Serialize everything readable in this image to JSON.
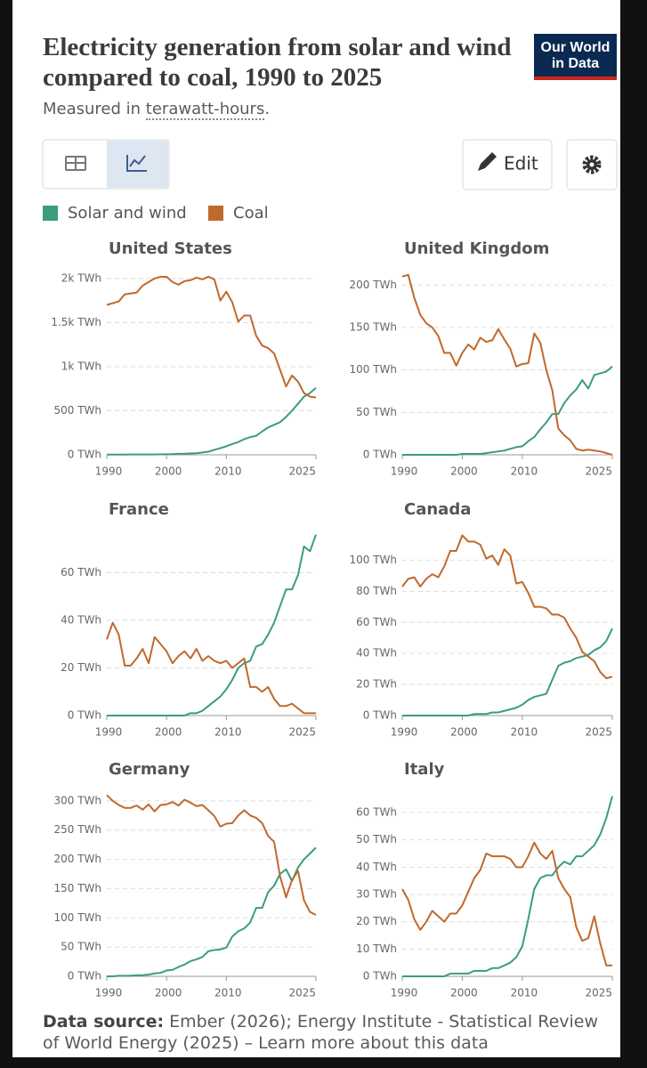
{
  "header": {
    "title": "Electricity generation from solar and wind compared to coal, 1990 to 2025",
    "subtitle": "Measured in",
    "subtitle_unit": "terawatt-hours",
    "subtitle_end": ".",
    "logo_line1": "Our World",
    "logo_line2": "in Data"
  },
  "toolbar": {
    "edit": "Edit"
  },
  "footer": {
    "source_label": "Data source:",
    "source_text": "Ember (2026); Energy Institute - Statistical Review of World Energy (2025) – Learn more about this data"
  },
  "chart_data": [
    {
      "type": "line",
      "title": "United States",
      "x": [
        1990,
        1991,
        1992,
        1993,
        1994,
        1995,
        1996,
        1997,
        1998,
        1999,
        2000,
        2001,
        2002,
        2003,
        2004,
        2005,
        2006,
        2007,
        2008,
        2009,
        2010,
        2011,
        2012,
        2013,
        2014,
        2015,
        2016,
        2017,
        2018,
        2019,
        2020,
        2021,
        2022,
        2023,
        2024,
        2025
      ],
      "xlim": [
        1990,
        2025
      ],
      "xticks": [
        1990,
        2000,
        2010,
        2025
      ],
      "ylim": [
        0,
        2080
      ],
      "yticks": [
        {
          "value": 0,
          "label": "0 TWh"
        },
        {
          "value": 500,
          "label": "500 TWh"
        },
        {
          "value": 1000,
          "label": "1k TWh"
        },
        {
          "value": 1500,
          "label": "1.5k TWh"
        },
        {
          "value": 2000,
          "label": "2k TWh"
        }
      ],
      "grid": true,
      "series": [
        {
          "name": "Solar and wind",
          "color": "#3b9c80",
          "values": [
            3,
            3,
            3,
            3,
            4,
            4,
            4,
            4,
            4,
            5,
            6,
            7,
            11,
            12,
            15,
            18,
            27,
            35,
            56,
            75,
            96,
            122,
            145,
            177,
            200,
            215,
            265,
            310,
            340,
            370,
            430,
            500,
            580,
            660,
            700,
            760
          ]
        },
        {
          "name": "Coal",
          "color": "#c0692c",
          "values": [
            1700,
            1720,
            1740,
            1820,
            1830,
            1840,
            1920,
            1960,
            2000,
            2020,
            2020,
            1960,
            1930,
            1970,
            1980,
            2010,
            1990,
            2020,
            1990,
            1750,
            1850,
            1730,
            1510,
            1580,
            1580,
            1350,
            1240,
            1210,
            1150,
            965,
            775,
            900,
            830,
            700,
            660,
            650
          ]
        }
      ]
    },
    {
      "type": "line",
      "title": "United Kingdom",
      "x": [
        1990,
        1991,
        1992,
        1993,
        1994,
        1995,
        1996,
        1997,
        1998,
        1999,
        2000,
        2001,
        2002,
        2003,
        2004,
        2005,
        2006,
        2007,
        2008,
        2009,
        2010,
        2011,
        2012,
        2013,
        2014,
        2015,
        2016,
        2017,
        2018,
        2019,
        2020,
        2021,
        2022,
        2023,
        2024,
        2025
      ],
      "xlim": [
        1990,
        2025
      ],
      "xticks": [
        1990,
        2000,
        2010,
        2025
      ],
      "ylim": [
        0,
        216
      ],
      "yticks": [
        {
          "value": 0,
          "label": "0 TWh"
        },
        {
          "value": 50,
          "label": "50 TWh"
        },
        {
          "value": 100,
          "label": "100 TWh"
        },
        {
          "value": 150,
          "label": "150 TWh"
        },
        {
          "value": 200,
          "label": "200 TWh"
        }
      ],
      "grid": true,
      "series": [
        {
          "name": "Solar and wind",
          "color": "#3b9c80",
          "values": [
            0,
            0,
            0,
            0,
            0,
            0,
            0,
            0,
            0,
            0,
            1,
            1,
            1,
            1,
            2,
            3,
            4,
            5,
            7,
            9,
            10,
            16,
            21,
            30,
            38,
            48,
            48,
            61,
            70,
            77,
            88,
            78,
            94,
            96,
            98,
            104
          ]
        },
        {
          "name": "Coal",
          "color": "#c0692c",
          "values": [
            210,
            212,
            185,
            165,
            155,
            150,
            140,
            120,
            120,
            105,
            120,
            130,
            124,
            138,
            133,
            135,
            148,
            136,
            125,
            104,
            107,
            108,
            143,
            132,
            100,
            76,
            31,
            23,
            17,
            7,
            5,
            6,
            5,
            4,
            2,
            0
          ]
        }
      ]
    },
    {
      "type": "line",
      "title": "France",
      "x": [
        1990,
        1991,
        1992,
        1993,
        1994,
        1995,
        1996,
        1997,
        1998,
        1999,
        2000,
        2001,
        2002,
        2003,
        2004,
        2005,
        2006,
        2007,
        2008,
        2009,
        2010,
        2011,
        2012,
        2013,
        2014,
        2015,
        2016,
        2017,
        2018,
        2019,
        2020,
        2021,
        2022,
        2023,
        2024,
        2025
      ],
      "xlim": [
        1990,
        2025
      ],
      "xticks": [
        1990,
        2000,
        2010,
        2025
      ],
      "ylim": [
        0,
        77
      ],
      "yticks": [
        {
          "value": 0,
          "label": "0 TWh"
        },
        {
          "value": 20,
          "label": "20 TWh"
        },
        {
          "value": 40,
          "label": "40 TWh"
        },
        {
          "value": 60,
          "label": "60 TWh"
        }
      ],
      "grid": true,
      "series": [
        {
          "name": "Solar and wind",
          "color": "#3b9c80",
          "values": [
            0,
            0,
            0,
            0,
            0,
            0,
            0,
            0,
            0,
            0,
            0,
            0,
            0,
            0,
            1,
            1,
            2,
            4,
            6,
            8,
            11,
            15,
            20,
            22,
            23,
            29,
            30,
            34,
            39,
            46,
            53,
            53,
            59,
            71,
            69,
            76
          ]
        },
        {
          "name": "Coal",
          "color": "#c0692c",
          "values": [
            32,
            39,
            34,
            21,
            21,
            24,
            28,
            22,
            33,
            30,
            27,
            22,
            25,
            27,
            24,
            28,
            23,
            25,
            23,
            22,
            23,
            20,
            22,
            24,
            12,
            12,
            10,
            12,
            7,
            4,
            4,
            5,
            3,
            1,
            1,
            1
          ]
        }
      ]
    },
    {
      "type": "line",
      "title": "Canada",
      "x": [
        1990,
        1991,
        1992,
        1993,
        1994,
        1995,
        1996,
        1997,
        1998,
        1999,
        2000,
        2001,
        2002,
        2003,
        2004,
        2005,
        2006,
        2007,
        2008,
        2009,
        2010,
        2011,
        2012,
        2013,
        2014,
        2015,
        2016,
        2017,
        2018,
        2019,
        2020,
        2021,
        2022,
        2023,
        2024,
        2025
      ],
      "xlim": [
        1990,
        2025
      ],
      "xticks": [
        1990,
        2000,
        2010,
        2025
      ],
      "ylim": [
        0,
        118
      ],
      "yticks": [
        {
          "value": 0,
          "label": "0 TWh"
        },
        {
          "value": 20,
          "label": "20 TWh"
        },
        {
          "value": 40,
          "label": "40 TWh"
        },
        {
          "value": 60,
          "label": "60 TWh"
        },
        {
          "value": 80,
          "label": "80 TWh"
        },
        {
          "value": 100,
          "label": "100 TWh"
        }
      ],
      "grid": true,
      "series": [
        {
          "name": "Solar and wind",
          "color": "#3b9c80",
          "values": [
            0,
            0,
            0,
            0,
            0,
            0,
            0,
            0,
            0,
            0,
            0,
            0,
            1,
            1,
            1,
            2,
            2,
            3,
            4,
            5,
            7,
            10,
            12,
            13,
            14,
            23,
            32,
            34,
            35,
            37,
            38,
            39,
            42,
            44,
            48,
            56
          ]
        },
        {
          "name": "Coal",
          "color": "#c0692c",
          "values": [
            83,
            88,
            89,
            83,
            88,
            91,
            89,
            96,
            106,
            106,
            116,
            112,
            112,
            110,
            101,
            103,
            97,
            107,
            103,
            85,
            86,
            79,
            70,
            70,
            69,
            65,
            65,
            63,
            56,
            50,
            41,
            38,
            35,
            28,
            24,
            25
          ]
        }
      ]
    },
    {
      "type": "line",
      "title": "Germany",
      "x": [
        1990,
        1991,
        1992,
        1993,
        1994,
        1995,
        1996,
        1997,
        1998,
        1999,
        2000,
        2001,
        2002,
        2003,
        2004,
        2005,
        2006,
        2007,
        2008,
        2009,
        2010,
        2011,
        2012,
        2013,
        2014,
        2015,
        2016,
        2017,
        2018,
        2019,
        2020,
        2021,
        2022,
        2023,
        2024,
        2025
      ],
      "xlim": [
        1990,
        2025
      ],
      "xticks": [
        1990,
        2000,
        2010,
        2025
      ],
      "ylim": [
        0,
        315
      ],
      "yticks": [
        {
          "value": 0,
          "label": "0 TWh"
        },
        {
          "value": 50,
          "label": "50 TWh"
        },
        {
          "value": 100,
          "label": "100 TWh"
        },
        {
          "value": 150,
          "label": "150 TWh"
        },
        {
          "value": 200,
          "label": "200 TWh"
        },
        {
          "value": 250,
          "label": "250 TWh"
        },
        {
          "value": 300,
          "label": "300 TWh"
        }
      ],
      "grid": true,
      "series": [
        {
          "name": "Solar and wind",
          "color": "#3b9c80",
          "values": [
            0,
            0,
            1,
            1,
            1,
            2,
            2,
            3,
            5,
            6,
            10,
            11,
            16,
            20,
            26,
            29,
            33,
            43,
            45,
            46,
            49,
            68,
            77,
            82,
            92,
            117,
            117,
            144,
            155,
            175,
            183,
            163,
            186,
            200,
            210,
            220
          ]
        },
        {
          "name": "Coal",
          "color": "#c0692c",
          "values": [
            310,
            300,
            293,
            288,
            288,
            292,
            285,
            294,
            282,
            293,
            294,
            298,
            292,
            302,
            297,
            291,
            293,
            284,
            274,
            256,
            261,
            262,
            275,
            284,
            275,
            271,
            262,
            240,
            230,
            171,
            135,
            165,
            180,
            130,
            110,
            105
          ]
        }
      ]
    },
    {
      "type": "line",
      "title": "Italy",
      "x": [
        1990,
        1991,
        1992,
        1993,
        1994,
        1995,
        1996,
        1997,
        1998,
        1999,
        2000,
        2001,
        2002,
        2003,
        2004,
        2005,
        2006,
        2007,
        2008,
        2009,
        2010,
        2011,
        2012,
        2013,
        2014,
        2015,
        2016,
        2017,
        2018,
        2019,
        2020,
        2021,
        2022,
        2023,
        2024,
        2025
      ],
      "xlim": [
        1990,
        2025
      ],
      "xticks": [
        1990,
        2000,
        2010,
        2025
      ],
      "ylim": [
        0,
        67.5
      ],
      "yticks": [
        {
          "value": 0,
          "label": "0 TWh"
        },
        {
          "value": 10,
          "label": "10 TWh"
        },
        {
          "value": 20,
          "label": "20 TWh"
        },
        {
          "value": 30,
          "label": "30 TWh"
        },
        {
          "value": 40,
          "label": "40 TWh"
        },
        {
          "value": 50,
          "label": "50 TWh"
        },
        {
          "value": 60,
          "label": "60 TWh"
        }
      ],
      "grid": true,
      "series": [
        {
          "name": "Solar and wind",
          "color": "#3b9c80",
          "values": [
            0,
            0,
            0,
            0,
            0,
            0,
            0,
            0,
            1,
            1,
            1,
            1,
            2,
            2,
            2,
            3,
            3,
            4,
            5,
            7,
            11,
            21,
            32,
            36,
            37,
            37,
            40,
            42,
            41,
            44,
            44,
            46,
            48,
            52,
            58,
            66
          ]
        },
        {
          "name": "Coal",
          "color": "#c0692c",
          "values": [
            32,
            28,
            21,
            17,
            20,
            24,
            22,
            20,
            23,
            23,
            26,
            31,
            36,
            39,
            45,
            44,
            44,
            44,
            43,
            40,
            40,
            44,
            49,
            45,
            43,
            46,
            36,
            32,
            29,
            18,
            13,
            14,
            22,
            12,
            4,
            4
          ]
        }
      ]
    }
  ]
}
